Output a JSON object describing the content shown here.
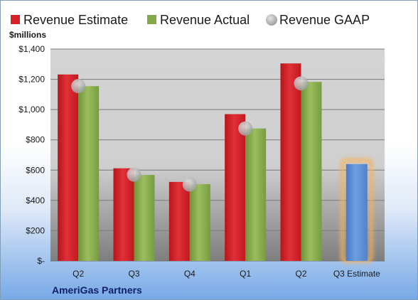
{
  "chart_data": {
    "type": "bar",
    "ylabel": "$millions",
    "ylim": [
      0,
      1400
    ],
    "yticks": [
      0,
      200,
      400,
      600,
      800,
      1000,
      1200,
      1400
    ],
    "ytick_labels": [
      "$-",
      "$200",
      "$400",
      "$600",
      "$800",
      "$1,000",
      "$1,200",
      "$1,400"
    ],
    "categories": [
      "Q2",
      "Q3",
      "Q4",
      "Q1",
      "Q2",
      "Q3 Estimate"
    ],
    "series": [
      {
        "name": "Revenue Estimate",
        "color": "#d42027",
        "values": [
          1232,
          612,
          522,
          970,
          1305,
          null
        ]
      },
      {
        "name": "Revenue Actual",
        "color": "#84a94a",
        "values": [
          1155,
          568,
          507,
          875,
          1183,
          null
        ]
      },
      {
        "name": "Revenue GAAP",
        "color": "#a6a6a6",
        "values": [
          1155,
          570,
          505,
          875,
          1173,
          null
        ]
      }
    ],
    "estimate_bar": {
      "category": "Q3 Estimate",
      "value": 640,
      "color": "#5b8ed6",
      "glow": "#f5b25c"
    },
    "grid": true,
    "legend": "top",
    "footer": "AmeriGas Partners"
  }
}
